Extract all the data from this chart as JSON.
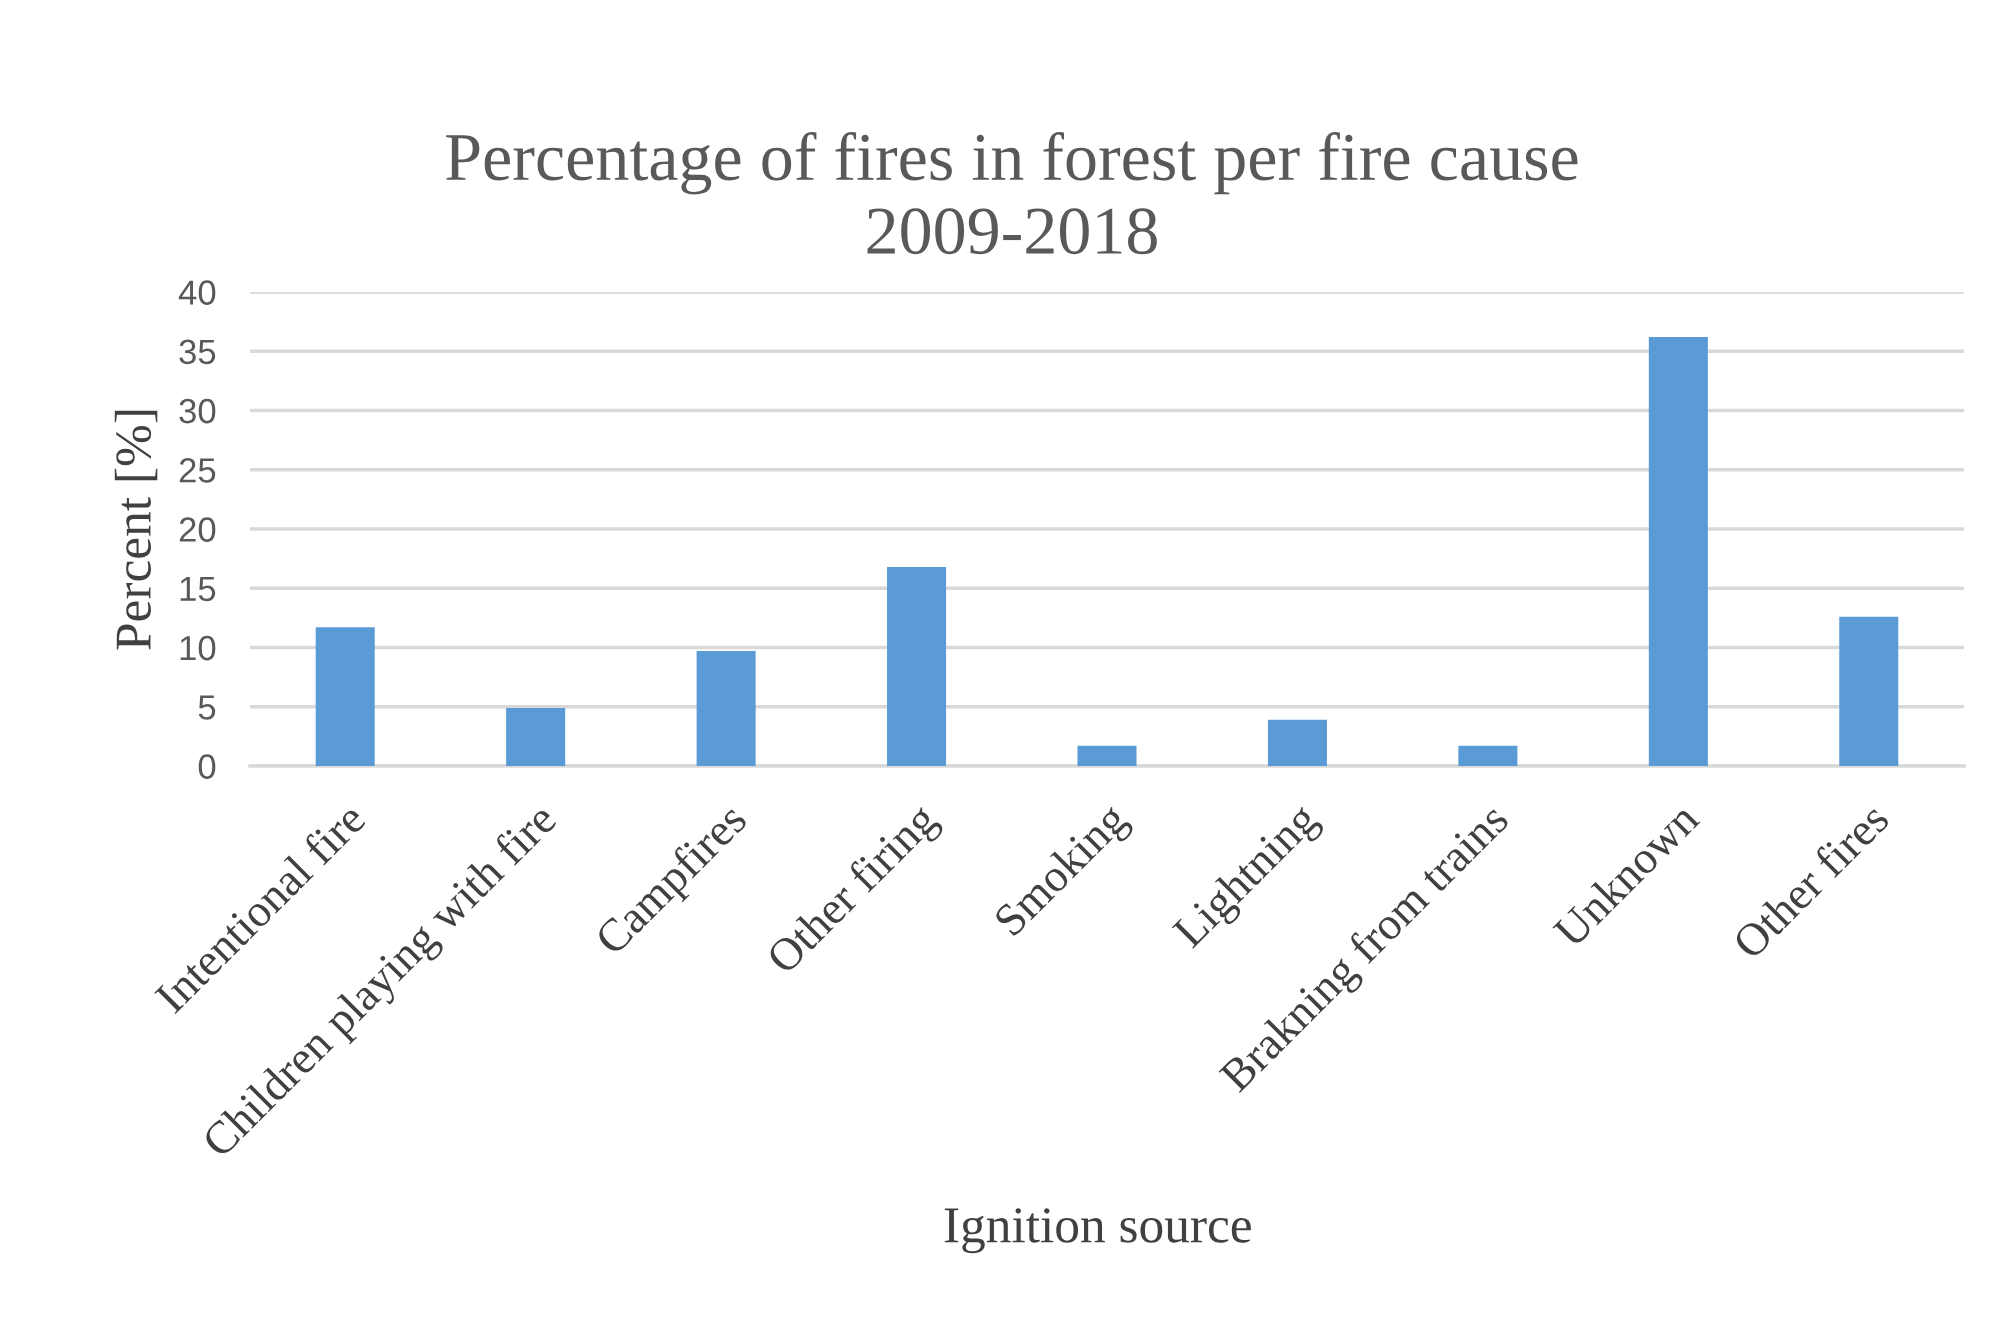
{
  "chart_data": {
    "type": "bar",
    "title": "Percentage of fires in forest per fire cause 2009-2018",
    "xlabel": "Ignition source",
    "ylabel": "Percent [%]",
    "categories": [
      "Intentional fire",
      "Children playing with fire",
      "Campfires",
      "Other firing",
      "Smoking",
      "Lightning",
      "Brakning from trains",
      "Unknown",
      "Other fires"
    ],
    "values": [
      11.7,
      4.9,
      9.7,
      16.8,
      1.7,
      3.9,
      1.7,
      36.2,
      12.6
    ],
    "color": "#5b9bd5",
    "ylim": [
      0,
      40
    ],
    "yticks": [
      0,
      5,
      10,
      15,
      20,
      25,
      30,
      35,
      40
    ],
    "grid": "y"
  }
}
